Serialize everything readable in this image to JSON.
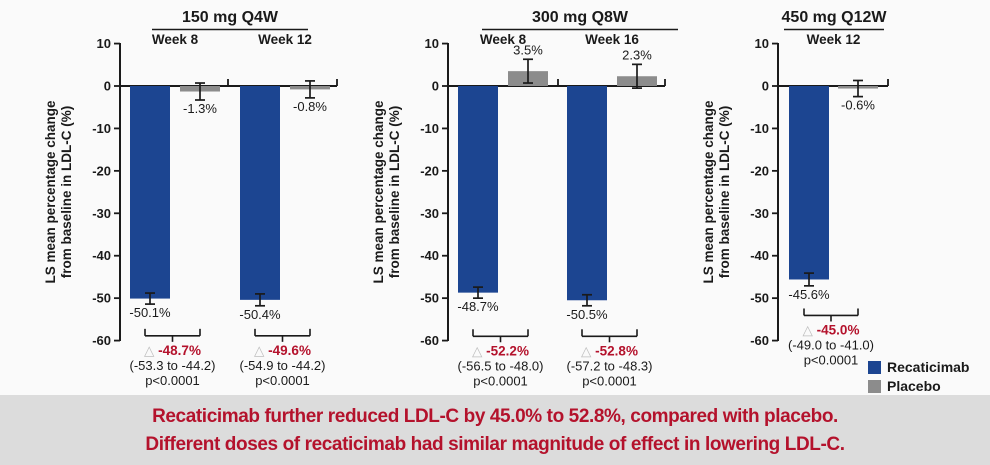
{
  "figure": {
    "background": "#FAFAFA",
    "axis_color": "#1a1a1a",
    "bar_colors": {
      "recaticimab": "#1C4591",
      "placebo": "#8C8C8C"
    },
    "delta_color": "#B4122C",
    "triangle_color": "#BDBDBD",
    "legend": {
      "items": [
        {
          "label": "Recaticimab",
          "color": "#1C4591"
        },
        {
          "label": "Placebo",
          "color": "#8C8C8C"
        }
      ]
    },
    "banner": {
      "bg": "#DCDCDC",
      "color": "#B4122C",
      "line1": "Recaticimab further reduced LDL-C by 45.0% to 52.8%, compared with placebo.",
      "line2": "Different doses of recaticimab had similar magnitude of effect in lowering LDL-C."
    }
  },
  "chart_data": [
    {
      "type": "bar",
      "title": "150 mg Q4W",
      "ylabel_lines": [
        "LS mean percentage change",
        "from baseline in LDL-C (%)"
      ],
      "ylim": [
        -60,
        10
      ],
      "yticks": [
        10,
        0,
        -10,
        -20,
        -30,
        -40,
        -50,
        -60
      ],
      "series": [
        "Recaticimab",
        "Placebo"
      ],
      "legend_position": "bottom-right",
      "grid": false,
      "groups": [
        {
          "label": "Week 8",
          "bars": [
            {
              "series": "Recaticimab",
              "value": -50.1,
              "label": "-50.1%",
              "err": 1.3
            },
            {
              "series": "Placebo",
              "value": -1.3,
              "label": "-1.3%",
              "err": 2.0
            }
          ],
          "difference": {
            "symbol": "△",
            "value": "-48.7%",
            "ci": "(-53.3 to -44.2)",
            "p": "p<0.0001"
          }
        },
        {
          "label": "Week 12",
          "bars": [
            {
              "series": "Recaticimab",
              "value": -50.4,
              "label": "-50.4%",
              "err": 1.4
            },
            {
              "series": "Placebo",
              "value": -0.8,
              "label": "-0.8%",
              "err": 2.0
            }
          ],
          "difference": {
            "symbol": "△",
            "value": "-49.6%",
            "ci": "(-54.9 to -44.2)",
            "p": "p<0.0001"
          }
        }
      ]
    },
    {
      "type": "bar",
      "title": "300 mg Q8W",
      "ylabel_lines": [
        "LS mean percentage change",
        "from baseline in LDL-C (%)"
      ],
      "ylim": [
        -60,
        10
      ],
      "yticks": [
        10,
        0,
        -10,
        -20,
        -30,
        -40,
        -50,
        -60
      ],
      "series": [
        "Recaticimab",
        "Placebo"
      ],
      "grid": false,
      "groups": [
        {
          "label": "Week 8",
          "bars": [
            {
              "series": "Recaticimab",
              "value": -48.7,
              "label": "-48.7%",
              "err": 1.3
            },
            {
              "series": "Placebo",
              "value": 3.5,
              "label": "3.5%",
              "err": 2.8
            }
          ],
          "difference": {
            "symbol": "△",
            "value": "-52.2%",
            "ci": "(-56.5 to -48.0)",
            "p": "p<0.0001"
          }
        },
        {
          "label": "Week 16",
          "bars": [
            {
              "series": "Recaticimab",
              "value": -50.5,
              "label": "-50.5%",
              "err": 1.3
            },
            {
              "series": "Placebo",
              "value": 2.3,
              "label": "2.3%",
              "err": 2.8
            }
          ],
          "difference": {
            "symbol": "△",
            "value": "-52.8%",
            "ci": "(-57.2 to -48.3)",
            "p": "p<0.0001"
          }
        }
      ]
    },
    {
      "type": "bar",
      "title": "450 mg Q12W",
      "ylabel_lines": [
        "LS mean percentage change",
        "from baseline in LDL-C (%)"
      ],
      "ylim": [
        -60,
        10
      ],
      "yticks": [
        10,
        0,
        -10,
        -20,
        -30,
        -40,
        -50,
        -60
      ],
      "series": [
        "Recaticimab",
        "Placebo"
      ],
      "grid": false,
      "groups": [
        {
          "label": "Week 12",
          "bars": [
            {
              "series": "Recaticimab",
              "value": -45.6,
              "label": "-45.6%",
              "err": 1.5
            },
            {
              "series": "Placebo",
              "value": -0.6,
              "label": "-0.6%",
              "err": 1.9
            }
          ],
          "difference": {
            "symbol": "△",
            "value": "-45.0%",
            "ci": "(-49.0 to -41.0)",
            "p": "p<0.0001"
          }
        }
      ]
    }
  ]
}
